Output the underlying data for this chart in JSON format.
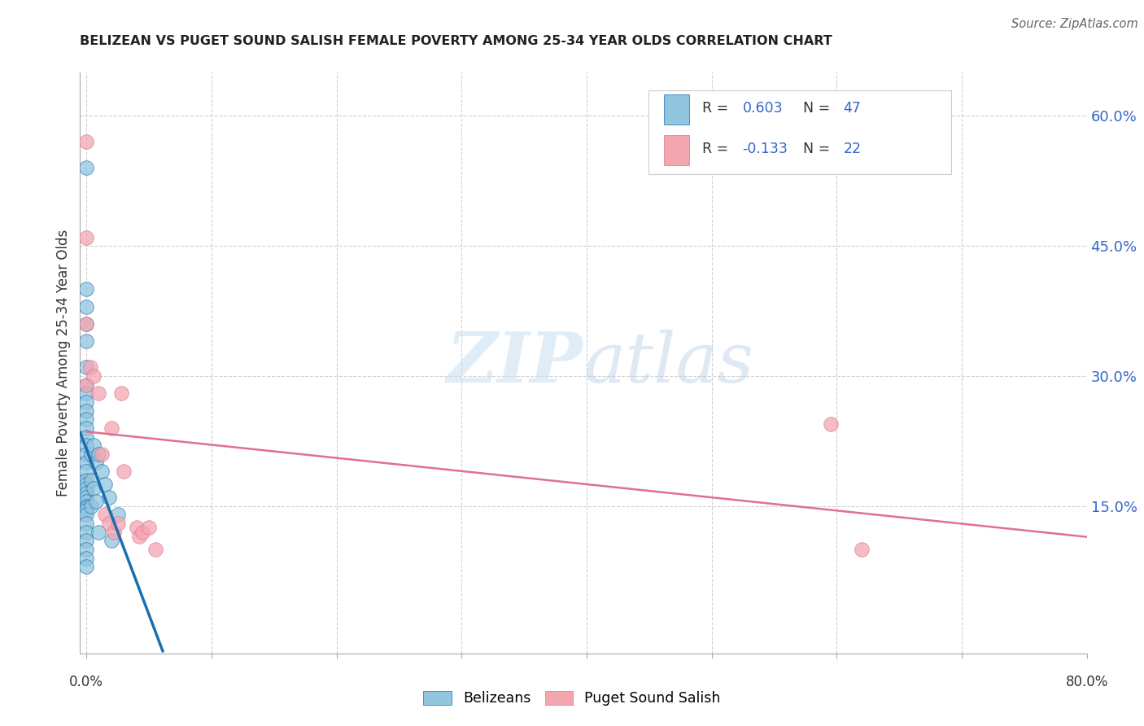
{
  "title": "BELIZEAN VS PUGET SOUND SALISH FEMALE POVERTY AMONG 25-34 YEAR OLDS CORRELATION CHART",
  "source": "Source: ZipAtlas.com",
  "ylabel": "Female Poverty Among 25-34 Year Olds",
  "ytick_labels": [
    "15.0%",
    "30.0%",
    "45.0%",
    "60.0%"
  ],
  "ytick_values": [
    0.15,
    0.3,
    0.45,
    0.6
  ],
  "xlim": [
    -0.005,
    0.8
  ],
  "ylim": [
    -0.02,
    0.65
  ],
  "r1": "0.603",
  "n1": "47",
  "r2": "-0.133",
  "n2": "22",
  "watermark_zip": "ZIP",
  "watermark_atlas": "atlas",
  "color_blue": "#92c5de",
  "color_pink": "#f4a6b0",
  "line_blue_solid": "#1a6faf",
  "line_blue_dash": "#92c5de",
  "line_pink": "#e07090",
  "belizean_x": [
    0.0,
    0.0,
    0.0,
    0.0,
    0.0,
    0.0,
    0.0,
    0.0,
    0.0,
    0.0,
    0.0,
    0.0,
    0.0,
    0.0,
    0.0,
    0.0,
    0.0,
    0.0,
    0.0,
    0.0,
    0.0,
    0.0,
    0.0,
    0.0,
    0.0,
    0.0,
    0.0,
    0.0,
    0.0,
    0.0,
    0.0,
    0.0,
    0.0,
    0.004,
    0.004,
    0.004,
    0.006,
    0.006,
    0.008,
    0.008,
    0.01,
    0.01,
    0.012,
    0.015,
    0.018,
    0.02,
    0.025
  ],
  "belizean_y": [
    0.54,
    0.4,
    0.38,
    0.36,
    0.34,
    0.31,
    0.29,
    0.28,
    0.27,
    0.26,
    0.25,
    0.24,
    0.23,
    0.22,
    0.21,
    0.2,
    0.19,
    0.18,
    0.175,
    0.17,
    0.165,
    0.16,
    0.155,
    0.15,
    0.148,
    0.145,
    0.14,
    0.13,
    0.12,
    0.11,
    0.1,
    0.09,
    0.08,
    0.21,
    0.18,
    0.15,
    0.22,
    0.17,
    0.2,
    0.155,
    0.21,
    0.12,
    0.19,
    0.175,
    0.16,
    0.11,
    0.14
  ],
  "salish_x": [
    0.0,
    0.0,
    0.0,
    0.0,
    0.003,
    0.006,
    0.01,
    0.012,
    0.015,
    0.018,
    0.02,
    0.022,
    0.025,
    0.028,
    0.03,
    0.04,
    0.042,
    0.045,
    0.05,
    0.055,
    0.595,
    0.62
  ],
  "salish_y": [
    0.57,
    0.46,
    0.36,
    0.29,
    0.31,
    0.3,
    0.28,
    0.21,
    0.14,
    0.13,
    0.24,
    0.12,
    0.13,
    0.28,
    0.19,
    0.125,
    0.115,
    0.12,
    0.125,
    0.1,
    0.245,
    0.1
  ],
  "background_color": "#ffffff",
  "grid_color": "#d0d0d0",
  "legend_box_color": "#f8f8f8",
  "legend_edge_color": "#cccccc",
  "r_label_color": "#333333",
  "rn_value_color": "#3366cc"
}
